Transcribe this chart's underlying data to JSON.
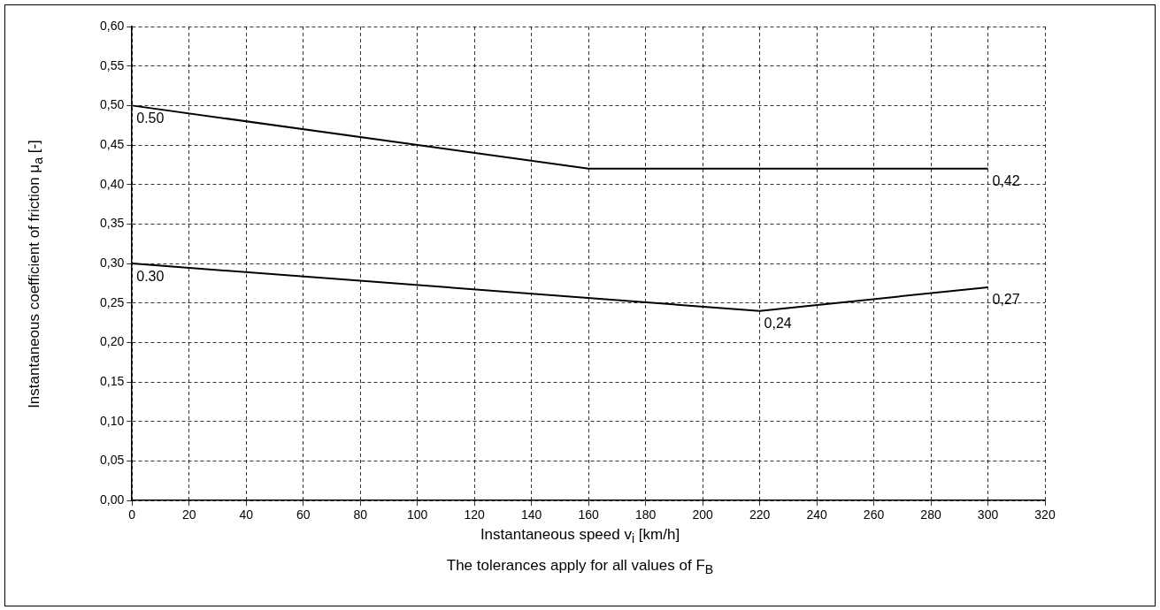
{
  "chart_data": {
    "type": "line",
    "xlabel": "Instantaneous speed v$_{i}$ [km/h]",
    "ylabel": "Instantaneous coefficient of friction μ$_{a}$ [-]",
    "series": [
      {
        "color": "#000000",
        "x": [
          0,
          160,
          300
        ],
        "values": [
          0.5,
          0.42,
          0.42
        ]
      },
      {
        "color": "#000000",
        "x": [
          0,
          220,
          300
        ],
        "values": [
          0.3,
          0.24,
          0.27
        ]
      }
    ],
    "xlim": [
      0,
      320
    ],
    "xticks": [
      0,
      20,
      40,
      60,
      80,
      100,
      120,
      140,
      160,
      180,
      200,
      220,
      240,
      260,
      280,
      300,
      320
    ],
    "ylim": [
      0,
      0.6
    ],
    "yticks": [
      {
        "value": 0,
        "label": "0,00"
      },
      {
        "value": 0.05,
        "label": "0,05"
      },
      {
        "value": 0.1,
        "label": "0,10"
      },
      {
        "value": 0.15,
        "label": "0,15"
      },
      {
        "value": 0.2,
        "label": "0,20"
      },
      {
        "value": 0.25,
        "label": "0,25"
      },
      {
        "value": 0.3,
        "label": "0,30"
      },
      {
        "value": 0.35,
        "label": "0,35"
      },
      {
        "value": 0.4,
        "label": "0,40"
      },
      {
        "value": 0.45,
        "label": "0,45"
      },
      {
        "value": 0.5,
        "label": "0,50"
      },
      {
        "value": 0.55,
        "label": "0,55"
      },
      {
        "value": 0.6,
        "label": "0,60"
      }
    ],
    "grid": true,
    "legend": false,
    "marker": "none",
    "line_style": "solid",
    "annotations": [
      {
        "text": "0.50",
        "x": 0,
        "y": 0.5
      },
      {
        "text": "0,42",
        "x": 300,
        "y": 0.42
      },
      {
        "text": "0.30",
        "x": 0,
        "y": 0.3
      },
      {
        "text": "0,24",
        "x": 220,
        "y": 0.24
      },
      {
        "text": "0,27",
        "x": 300,
        "y": 0.27
      },
      "The tolerances apply for all values of F$_{B}$"
    ]
  }
}
